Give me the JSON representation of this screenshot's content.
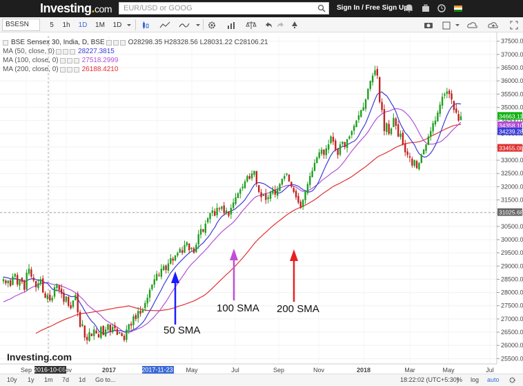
{
  "header": {
    "logo": "Investing",
    "logo_suffix": ".com",
    "search_placeholder": "EUR/USD or GOOG",
    "signin": "Sign In / Free Sign Up"
  },
  "toolbar": {
    "symbol": "BSESN",
    "intervals": [
      "5",
      "1h",
      "1D",
      "1M",
      "1D"
    ]
  },
  "legend": {
    "title": "BSE Sensex 30, India, D, BSE",
    "ohlc": "O28298.35  H28328.56  L28031.22  C28106.21",
    "ma": [
      {
        "label": "MA (50, close, 0)",
        "value": "28227.3815",
        "color": "#3b3bd6"
      },
      {
        "label": "MA (100, close, 0)",
        "value": "27518.2999",
        "color": "#b34fd6"
      },
      {
        "label": "MA (200, close, 0)",
        "value": "26188.4210",
        "color": "#e03030"
      }
    ]
  },
  "bottom": {
    "ranges": [
      "10y",
      "1y",
      "1m",
      "7d",
      "1d",
      "Go to..."
    ],
    "time": "18:22:02 (UTC+5:30)",
    "opts": [
      "%",
      "log",
      "auto"
    ]
  },
  "watermark": "Investing.com",
  "chart_data": {
    "type": "candlestick",
    "title": "BSE Sensex 30, India, D, BSE",
    "ylim": [
      25300,
      37700
    ],
    "y_ticks": [
      25500,
      26000,
      26500,
      27000,
      27500,
      28000,
      28500,
      29000,
      29500,
      30000,
      30500,
      31000,
      31500,
      32000,
      32500,
      33000,
      33500,
      34000,
      34500,
      35000,
      35500,
      36000,
      36500,
      37000,
      37500
    ],
    "x_ticks": [
      "Sep",
      "2016-10-06",
      "Nov",
      "2017",
      "2017-11-23",
      "May",
      "Jul",
      "Sep",
      "Nov",
      "2018",
      "Mar",
      "May",
      "Jul"
    ],
    "price_labels": [
      {
        "value": "34663.11",
        "color": "#12b212"
      },
      {
        "value": "34358.10",
        "color": "#b34fd6"
      },
      {
        "value": "34239.28",
        "color": "#3b3bd6"
      },
      {
        "value": "33455.08",
        "color": "#e03030"
      },
      {
        "value": "31025.68",
        "color": "#666666"
      }
    ],
    "close": [
      28500,
      28350,
      28450,
      28250,
      28600,
      28700,
      28300,
      28500,
      28400,
      28100,
      28750,
      28900,
      28600,
      28450,
      28200,
      28350,
      28500,
      28000,
      27800,
      27900,
      27700,
      27800,
      28200,
      28300,
      28100,
      27950,
      27650,
      27850,
      27500,
      27400,
      27700,
      27900,
      27250,
      26700,
      26800,
      26300,
      26200,
      26500,
      26350,
      26600,
      26450,
      26300,
      26700,
      26400,
      26600,
      26800,
      26500,
      26700,
      26650,
      26400,
      26500,
      26350,
      26200,
      26600,
      26800,
      26750,
      27100,
      27000,
      27300,
      27200,
      27350,
      27600,
      27800,
      28100,
      28300,
      28500,
      28700,
      28650,
      28900,
      29000,
      28850,
      29100,
      29300,
      29200,
      29400,
      29500,
      29650,
      29500,
      29800,
      29900,
      29600,
      29700,
      29500,
      29800,
      30200,
      30400,
      30300,
      30600,
      30800,
      31000,
      31100,
      30900,
      31200,
      31150,
      31250,
      31000,
      31100,
      30900,
      31200,
      31400,
      31600,
      31750,
      31900,
      32000,
      32200,
      32400,
      32300,
      32500,
      32600,
      32100,
      31800,
      31600,
      31700,
      31500,
      31600,
      31800,
      31900,
      31700,
      31900,
      32100,
      32300,
      32400,
      32500,
      32200,
      32000,
      31800,
      31600,
      31400,
      31200,
      31500,
      31800,
      32100,
      32400,
      32600,
      32900,
      33100,
      33300,
      33400,
      33200,
      33450,
      33600,
      33900,
      33700,
      33400,
      33200,
      33600,
      33700,
      33500,
      33800,
      33900,
      34100,
      34300,
      34500,
      34700,
      34900,
      35000,
      35300,
      35700,
      36000,
      36200,
      36400,
      36200,
      35200,
      34900,
      34100,
      34400,
      34000,
      34200,
      34600,
      34300,
      33900,
      34000,
      33600,
      33300,
      33200,
      33100,
      32800,
      33000,
      32700,
      32900,
      33200,
      33400,
      33600,
      33900,
      34100,
      34400,
      34500,
      34800,
      35100,
      35400,
      35500,
      35600,
      35500,
      35300,
      34900,
      34800,
      34500,
      34663
    ]
  }
}
